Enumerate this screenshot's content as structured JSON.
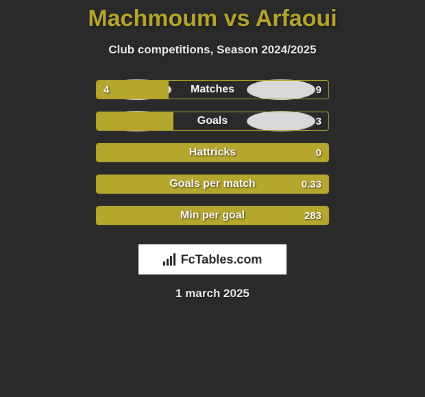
{
  "title": "Machmoum vs Arfaoui",
  "subtitle": "Club competitions, Season 2024/2025",
  "date": "1 march 2025",
  "branding": "FcTables.com",
  "accent_color": "#b5a62d",
  "bg_color": "#2a2a2a",
  "badge_color": "#d9d9d9",
  "rows": [
    {
      "label": "Matches",
      "left": "4",
      "right": "9",
      "fill_pct": 31,
      "show_badges": true
    },
    {
      "label": "Goals",
      "left": "",
      "right": "3",
      "fill_pct": 33,
      "show_badges": true
    },
    {
      "label": "Hattricks",
      "left": "",
      "right": "0",
      "fill_pct": 100,
      "show_badges": false
    },
    {
      "label": "Goals per match",
      "left": "",
      "right": "0.33",
      "fill_pct": 100,
      "show_badges": false
    },
    {
      "label": "Min per goal",
      "left": "",
      "right": "283",
      "fill_pct": 100,
      "show_badges": false
    }
  ]
}
